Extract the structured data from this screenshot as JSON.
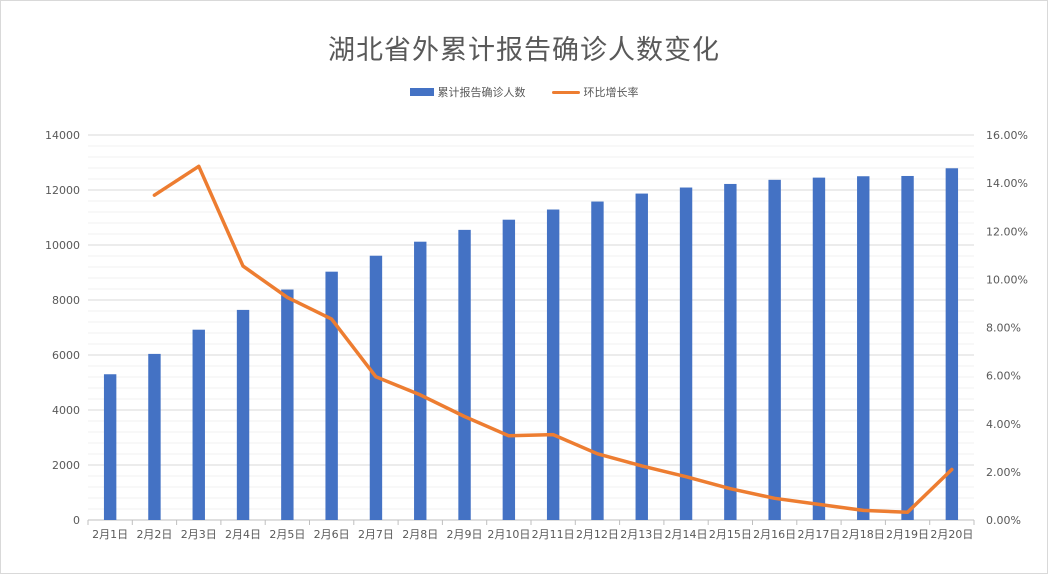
{
  "chart_data": {
    "type": "bar",
    "title": "湖北省外累计报告确诊人数变化",
    "categories": [
      "2月1日",
      "2月2日",
      "2月3日",
      "2月4日",
      "2月5日",
      "2月6日",
      "2月7日",
      "2月8日",
      "2月9日",
      "2月10日",
      "2月11日",
      "2月12日",
      "2月13日",
      "2月14日",
      "2月15日",
      "2月16日",
      "2月17日",
      "2月18日",
      "2月19日",
      "2月20日"
    ],
    "series": [
      {
        "name": "累计报告确诊人数",
        "kind": "bar",
        "axis": "left",
        "color": "#4472c4",
        "values": [
          5300,
          6040,
          6920,
          7640,
          8380,
          9030,
          9610,
          10120,
          10550,
          10920,
          11290,
          11580,
          11870,
          12090,
          12220,
          12370,
          12450,
          12500,
          12510,
          12790
        ]
      },
      {
        "name": "环比增长率",
        "kind": "line",
        "axis": "right",
        "color": "#ed7d31",
        "values": [
          null,
          13.5,
          14.7,
          10.55,
          9.25,
          8.35,
          5.95,
          5.2,
          4.3,
          3.5,
          3.55,
          2.75,
          2.25,
          1.8,
          1.3,
          0.9,
          0.65,
          0.4,
          0.32,
          2.1
        ]
      }
    ],
    "y_left": {
      "min": 0,
      "max": 14000,
      "major_step": 2000,
      "ticks": [
        "0",
        "2000",
        "4000",
        "6000",
        "8000",
        "10000",
        "12000",
        "14000"
      ]
    },
    "y_right": {
      "min": 0,
      "max": 16,
      "major_step": 2,
      "ticks": [
        "0.00%",
        "2.00%",
        "4.00%",
        "6.00%",
        "8.00%",
        "10.00%",
        "12.00%",
        "14.00%",
        "16.00%"
      ]
    },
    "grid": true,
    "minor_grid": true,
    "legend_position": "top"
  }
}
